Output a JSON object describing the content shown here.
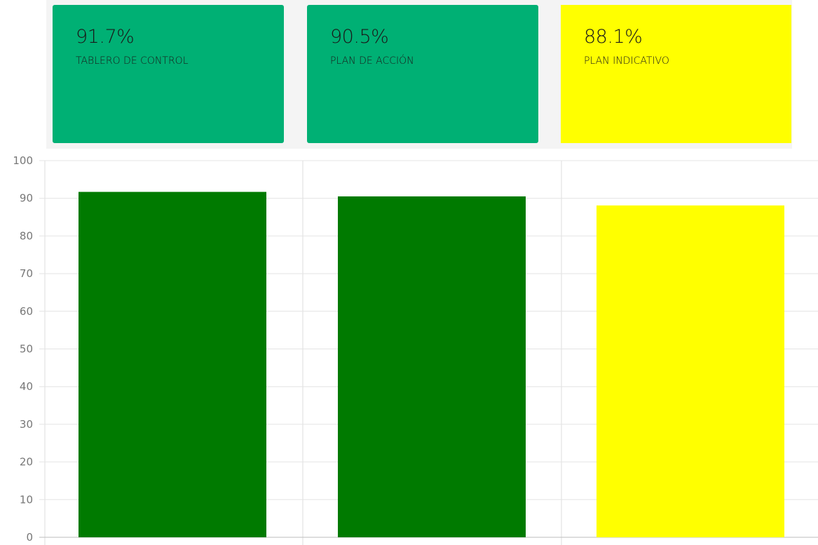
{
  "cards": [
    {
      "value": "91.7%",
      "label": "TABLERO DE CONTROL",
      "color": "#00b074"
    },
    {
      "value": "90.5%",
      "label": "PLAN DE ACCIÓN",
      "color": "#00b074"
    },
    {
      "value": "88.1%",
      "label": "PLAN INDICATIVO",
      "color": "#ffff00"
    }
  ],
  "chart_data": {
    "type": "bar",
    "categories": [
      "",
      "",
      ""
    ],
    "values": [
      91.7,
      90.5,
      88.1
    ],
    "colors": [
      "#007a00",
      "#007a00",
      "#ffff00"
    ],
    "ylim": [
      0,
      100
    ],
    "yticks": [
      "0",
      "10",
      "20",
      "30",
      "40",
      "50",
      "60",
      "70",
      "80",
      "90",
      "100"
    ],
    "grid": true,
    "title": "",
    "xlabel": "",
    "ylabel": ""
  }
}
